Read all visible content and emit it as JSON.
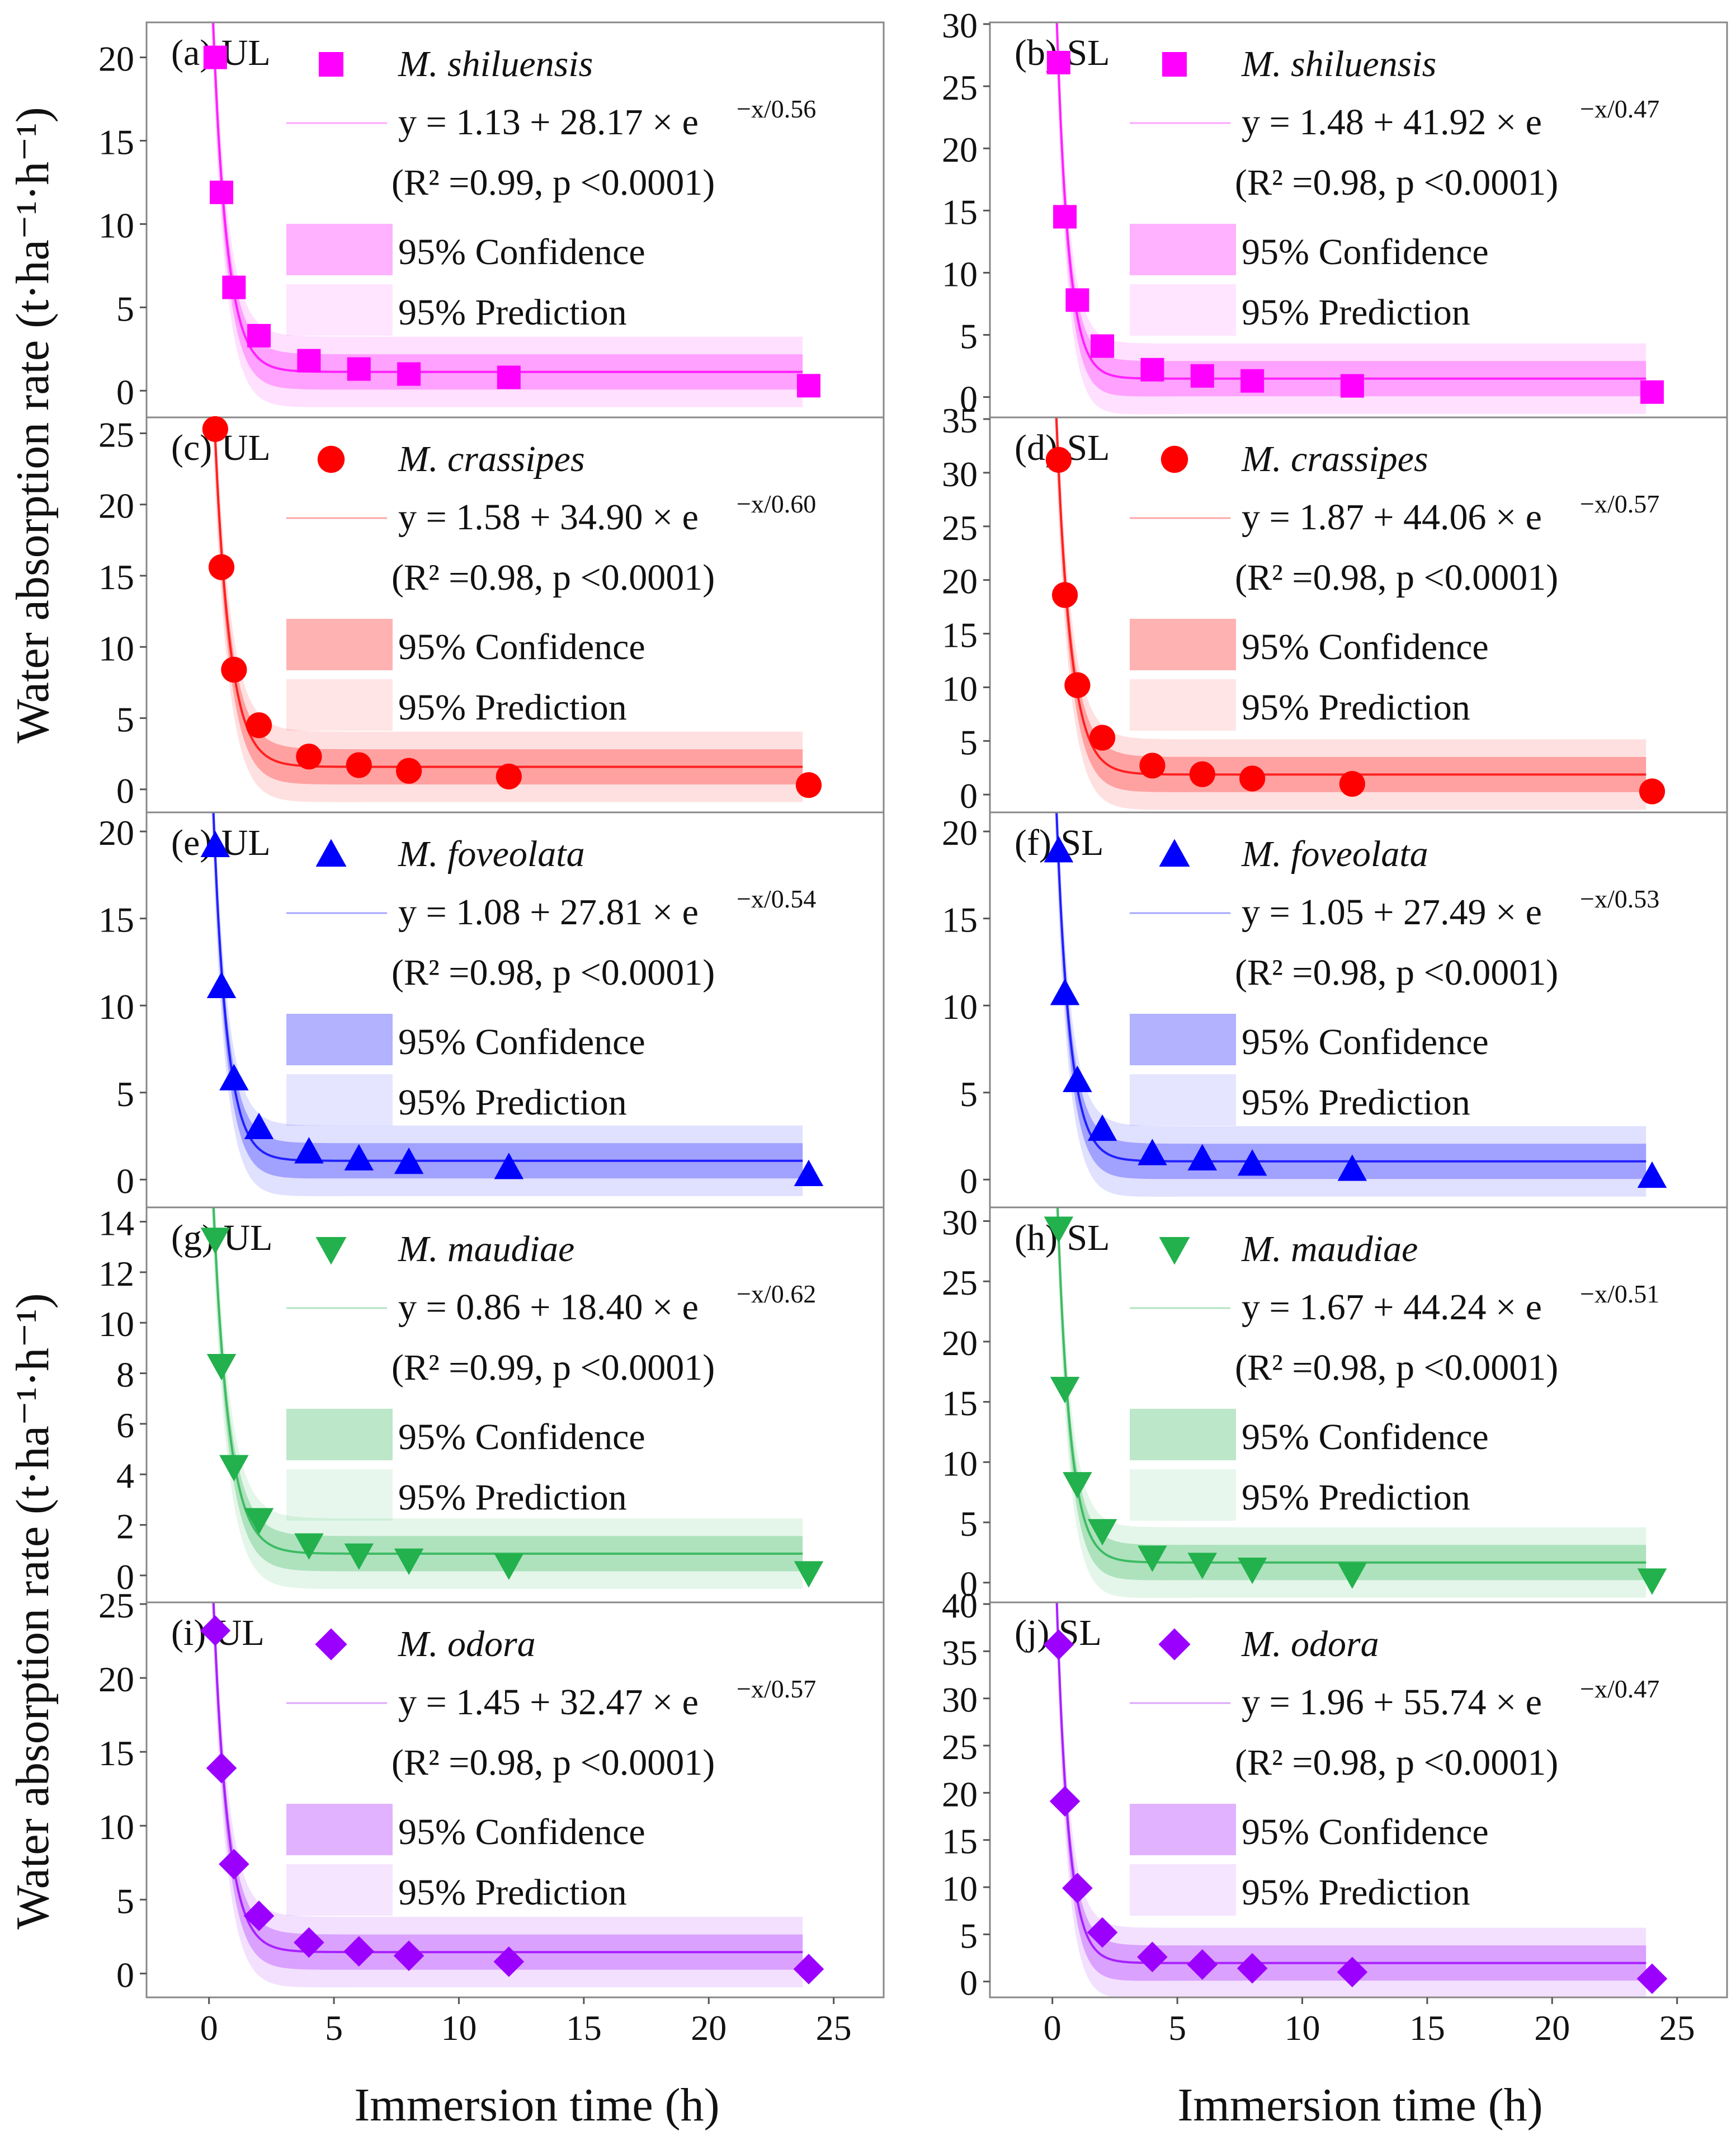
{
  "figure": {
    "y_axis_label_top": "Water absorption rate (t·ha⁻¹·h⁻¹)",
    "y_axis_label_bottom": "Water absorption rate (t·ha⁻¹·h⁻¹)",
    "x_axis_label": "Immersion time (h)",
    "legend_confidence": "95% Confidence",
    "legend_prediction": "95% Prediction"
  },
  "chart_data": [
    {
      "type": "scatter",
      "panel": "(a) UL",
      "species": "M. shiluensis",
      "marker": "square",
      "color": "#ff00ff",
      "equation": "y = 1.13 + 28.17 × e",
      "exponent": "−x/0.56",
      "stats": "(R² =0.99, p <0.0001)",
      "fit": {
        "y0": 1.13,
        "A": 28.17,
        "t": 0.56
      },
      "x": [
        0.25,
        0.5,
        1,
        2,
        4,
        6,
        8,
        12,
        24
      ],
      "y": [
        20.0,
        11.9,
        6.2,
        3.3,
        1.8,
        1.3,
        1.0,
        0.8,
        0.3
      ],
      "ylim": [
        -1.5,
        22
      ],
      "yticks": [
        0,
        5,
        10,
        15,
        20
      ],
      "xlim": [
        -2.5,
        27
      ],
      "xticks": [
        0,
        5,
        10,
        15,
        20,
        25
      ],
      "xlabel": "",
      "ylabel": "Water absorption rate (t·ha⁻¹·h⁻¹)"
    },
    {
      "type": "scatter",
      "panel": "(b) SL",
      "species": "M. shiluensis",
      "marker": "square",
      "color": "#ff00ff",
      "equation": "y = 1.48 + 41.92 × e",
      "exponent": "−x/0.47",
      "stats": "(R² =0.98, p <0.0001)",
      "fit": {
        "y0": 1.48,
        "A": 41.92,
        "t": 0.47
      },
      "x": [
        0.25,
        0.5,
        1,
        2,
        4,
        6,
        8,
        12,
        24
      ],
      "y": [
        26.9,
        14.5,
        7.8,
        4.1,
        2.2,
        1.7,
        1.3,
        0.9,
        0.4
      ],
      "ylim": [
        -1.5,
        30
      ],
      "yticks": [
        0,
        5,
        10,
        15,
        20,
        25,
        30
      ],
      "xlim": [
        -2.5,
        27
      ],
      "xticks": [
        0,
        5,
        10,
        15,
        20,
        25
      ],
      "xlabel": "",
      "ylabel": ""
    },
    {
      "type": "scatter",
      "panel": "(c) UL",
      "species": "M. crassipes",
      "marker": "circle",
      "color": "#ff0000",
      "equation": "y = 1.58 + 34.90 × e",
      "exponent": "−x/0.60",
      "stats": "(R² =0.98, p <0.0001)",
      "fit": {
        "y0": 1.58,
        "A": 34.9,
        "t": 0.6
      },
      "x": [
        0.25,
        0.5,
        1,
        2,
        4,
        6,
        8,
        12,
        24
      ],
      "y": [
        25.3,
        15.6,
        8.4,
        4.5,
        2.3,
        1.7,
        1.3,
        0.9,
        0.3
      ],
      "ylim": [
        -1.5,
        26
      ],
      "yticks": [
        0,
        5,
        10,
        15,
        20,
        25
      ],
      "xlim": [
        -2.5,
        27
      ],
      "xticks": [
        0,
        5,
        10,
        15,
        20,
        25
      ],
      "xlabel": "",
      "ylabel": ""
    },
    {
      "type": "scatter",
      "panel": "(d) SL",
      "species": "M. crassipes",
      "marker": "circle",
      "color": "#ff0000",
      "equation": "y = 1.87 + 44.06 × e",
      "exponent": "−x/0.57",
      "stats": "(R² =0.98, p <0.0001)",
      "fit": {
        "y0": 1.87,
        "A": 44.06,
        "t": 0.57
      },
      "x": [
        0.25,
        0.5,
        1,
        2,
        4,
        6,
        8,
        12,
        24
      ],
      "y": [
        31.2,
        18.6,
        10.2,
        5.3,
        2.7,
        1.9,
        1.5,
        1.0,
        0.3
      ],
      "ylim": [
        -1.5,
        35
      ],
      "yticks": [
        0,
        5,
        10,
        15,
        20,
        25,
        30,
        35
      ],
      "xlim": [
        -2.5,
        27
      ],
      "xticks": [
        0,
        5,
        10,
        15,
        20,
        25
      ],
      "xlabel": "",
      "ylabel": ""
    },
    {
      "type": "scatter",
      "panel": "(e) UL",
      "species": "M. foveolata",
      "marker": "triangle-up",
      "color": "#0000ff",
      "equation": "y = 1.08 + 27.81 × e",
      "exponent": "−x/0.54",
      "stats": "(R² =0.98, p <0.0001)",
      "fit": {
        "y0": 1.08,
        "A": 27.81,
        "t": 0.54
      },
      "x": [
        0.25,
        0.5,
        1,
        2,
        4,
        6,
        8,
        12,
        24
      ],
      "y": [
        19.2,
        11.1,
        5.8,
        3.0,
        1.6,
        1.2,
        1.0,
        0.7,
        0.3
      ],
      "ylim": [
        -1.5,
        21
      ],
      "yticks": [
        0,
        5,
        10,
        15,
        20
      ],
      "xlim": [
        -2.5,
        27
      ],
      "xticks": [
        0,
        5,
        10,
        15,
        20,
        25
      ],
      "xlabel": "",
      "ylabel": ""
    },
    {
      "type": "scatter",
      "panel": "(f) SL",
      "species": "M. foveolata",
      "marker": "triangle-up",
      "color": "#0000ff",
      "equation": "y = 1.05 + 27.49 × e",
      "exponent": "−x/0.53",
      "stats": "(R² =0.98, p <0.0001)",
      "fit": {
        "y0": 1.05,
        "A": 27.49,
        "t": 0.53
      },
      "x": [
        0.25,
        0.5,
        1,
        2,
        4,
        6,
        8,
        12,
        24
      ],
      "y": [
        18.9,
        10.7,
        5.7,
        2.9,
        1.5,
        1.2,
        0.9,
        0.6,
        0.2
      ],
      "ylim": [
        -1.5,
        21
      ],
      "yticks": [
        0,
        5,
        10,
        15,
        20
      ],
      "xlim": [
        -2.5,
        27
      ],
      "xticks": [
        0,
        5,
        10,
        15,
        20,
        25
      ],
      "xlabel": "",
      "ylabel": ""
    },
    {
      "type": "scatter",
      "panel": "(g) UL",
      "species": "M. maudiae",
      "marker": "triangle-down",
      "color": "#22b14c",
      "equation": "y = 0.86 + 18.40 × e",
      "exponent": "−x/0.62",
      "stats": "(R² =0.99, p <0.0001)",
      "fit": {
        "y0": 0.86,
        "A": 18.4,
        "t": 0.62
      },
      "x": [
        0.25,
        0.5,
        1,
        2,
        4,
        6,
        8,
        12,
        24
      ],
      "y": [
        13.3,
        8.3,
        4.3,
        2.2,
        1.2,
        0.8,
        0.6,
        0.4,
        0.1
      ],
      "ylim": [
        -1.0,
        14.5
      ],
      "yticks": [
        0,
        2,
        4,
        6,
        8,
        10,
        12,
        14
      ],
      "xlim": [
        -2.5,
        27
      ],
      "xticks": [
        0,
        5,
        10,
        15,
        20,
        25
      ],
      "xlabel": "",
      "ylabel": "Water absorption rate (t·ha⁻¹·h⁻¹)"
    },
    {
      "type": "scatter",
      "panel": "(h) SL",
      "species": "M. maudiae",
      "marker": "triangle-down",
      "color": "#22b14c",
      "equation": "y = 1.67 + 44.24 × e",
      "exponent": "−x/0.51",
      "stats": "(R² =0.98, p <0.0001)",
      "fit": {
        "y0": 1.67,
        "A": 44.24,
        "t": 0.51
      },
      "x": [
        0.25,
        0.5,
        1,
        2,
        4,
        6,
        8,
        12,
        24
      ],
      "y": [
        29.4,
        16.1,
        8.2,
        4.3,
        2.1,
        1.5,
        1.1,
        0.7,
        0.2
      ],
      "ylim": [
        -1.5,
        31
      ],
      "yticks": [
        0,
        5,
        10,
        15,
        20,
        25,
        30
      ],
      "xlim": [
        -2.5,
        27
      ],
      "xticks": [
        0,
        5,
        10,
        15,
        20,
        25
      ],
      "xlabel": "",
      "ylabel": ""
    },
    {
      "type": "scatter",
      "panel": "(i) UL",
      "species": "M. odora",
      "marker": "diamond",
      "color": "#9b00ff",
      "equation": "y = 1.45 + 32.47 × e",
      "exponent": "−x/0.57",
      "stats": "(R² =0.98, p <0.0001)",
      "fit": {
        "y0": 1.45,
        "A": 32.47,
        "t": 0.57
      },
      "x": [
        0.25,
        0.5,
        1,
        2,
        4,
        6,
        8,
        12,
        24
      ],
      "y": [
        23.2,
        13.9,
        7.4,
        3.9,
        2.1,
        1.5,
        1.2,
        0.8,
        0.3
      ],
      "ylim": [
        -1.5,
        25
      ],
      "yticks": [
        0,
        5,
        10,
        15,
        20,
        25
      ],
      "xlim": [
        -2.5,
        27
      ],
      "xticks": [
        0,
        5,
        10,
        15,
        20,
        25
      ],
      "xlabel": "Immersion time (h)",
      "ylabel": ""
    },
    {
      "type": "scatter",
      "panel": "(j) SL",
      "species": "M. odora",
      "marker": "diamond",
      "color": "#9b00ff",
      "equation": "y = 1.96 + 55.74 × e",
      "exponent": "−x/0.47",
      "stats": "(R² =0.98, p <0.0001)",
      "fit": {
        "y0": 1.96,
        "A": 55.74,
        "t": 0.47
      },
      "x": [
        0.25,
        0.5,
        1,
        2,
        4,
        6,
        8,
        12,
        24
      ],
      "y": [
        35.7,
        19.1,
        9.9,
        5.2,
        2.6,
        1.8,
        1.4,
        1.0,
        0.3
      ],
      "ylim": [
        -1.5,
        40
      ],
      "yticks": [
        0,
        5,
        10,
        15,
        20,
        25,
        30,
        35,
        40
      ],
      "xlim": [
        -2.5,
        27
      ],
      "xticks": [
        0,
        5,
        10,
        15,
        20,
        25
      ],
      "xlabel": "Immersion time (h)",
      "ylabel": ""
    }
  ]
}
